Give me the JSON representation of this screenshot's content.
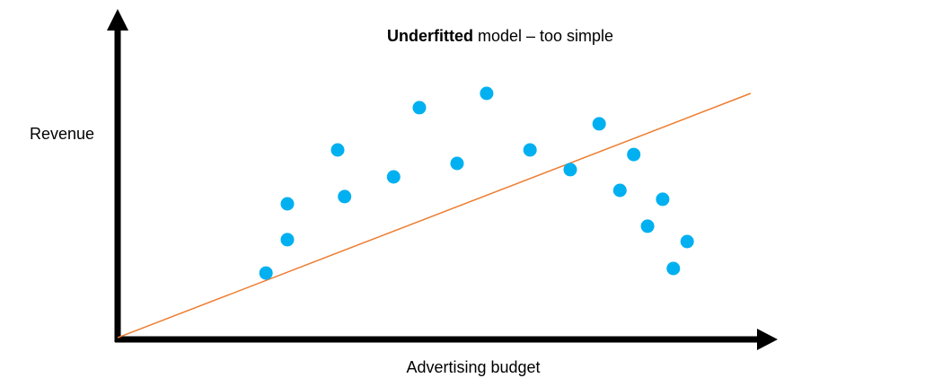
{
  "chart_data": {
    "type": "scatter",
    "title_bold": "Underfitted",
    "title_rest": "model – too simple",
    "x_label": "Advertising budget",
    "y_label": "Revenue",
    "xlim": [
      0,
      100
    ],
    "ylim": [
      0,
      100
    ],
    "points": {
      "color": "#00b0f0",
      "x": [
        23.6,
        27,
        27,
        35,
        36.1,
        43.9,
        48,
        54,
        58.7,
        65.6,
        72,
        76.6,
        79.9,
        82.1,
        84.3,
        86.7,
        88.4,
        90.6
      ],
      "y": [
        24.3,
        36.7,
        50,
        70,
        52.7,
        60,
        85.7,
        65,
        91,
        70,
        62.7,
        79.7,
        55,
        68.3,
        41.7,
        51.7,
        26,
        36
      ]
    },
    "fit_line": {
      "color": "#ed7d31",
      "x": [
        0,
        100.7
      ],
      "y": [
        0.3,
        91
      ]
    }
  }
}
